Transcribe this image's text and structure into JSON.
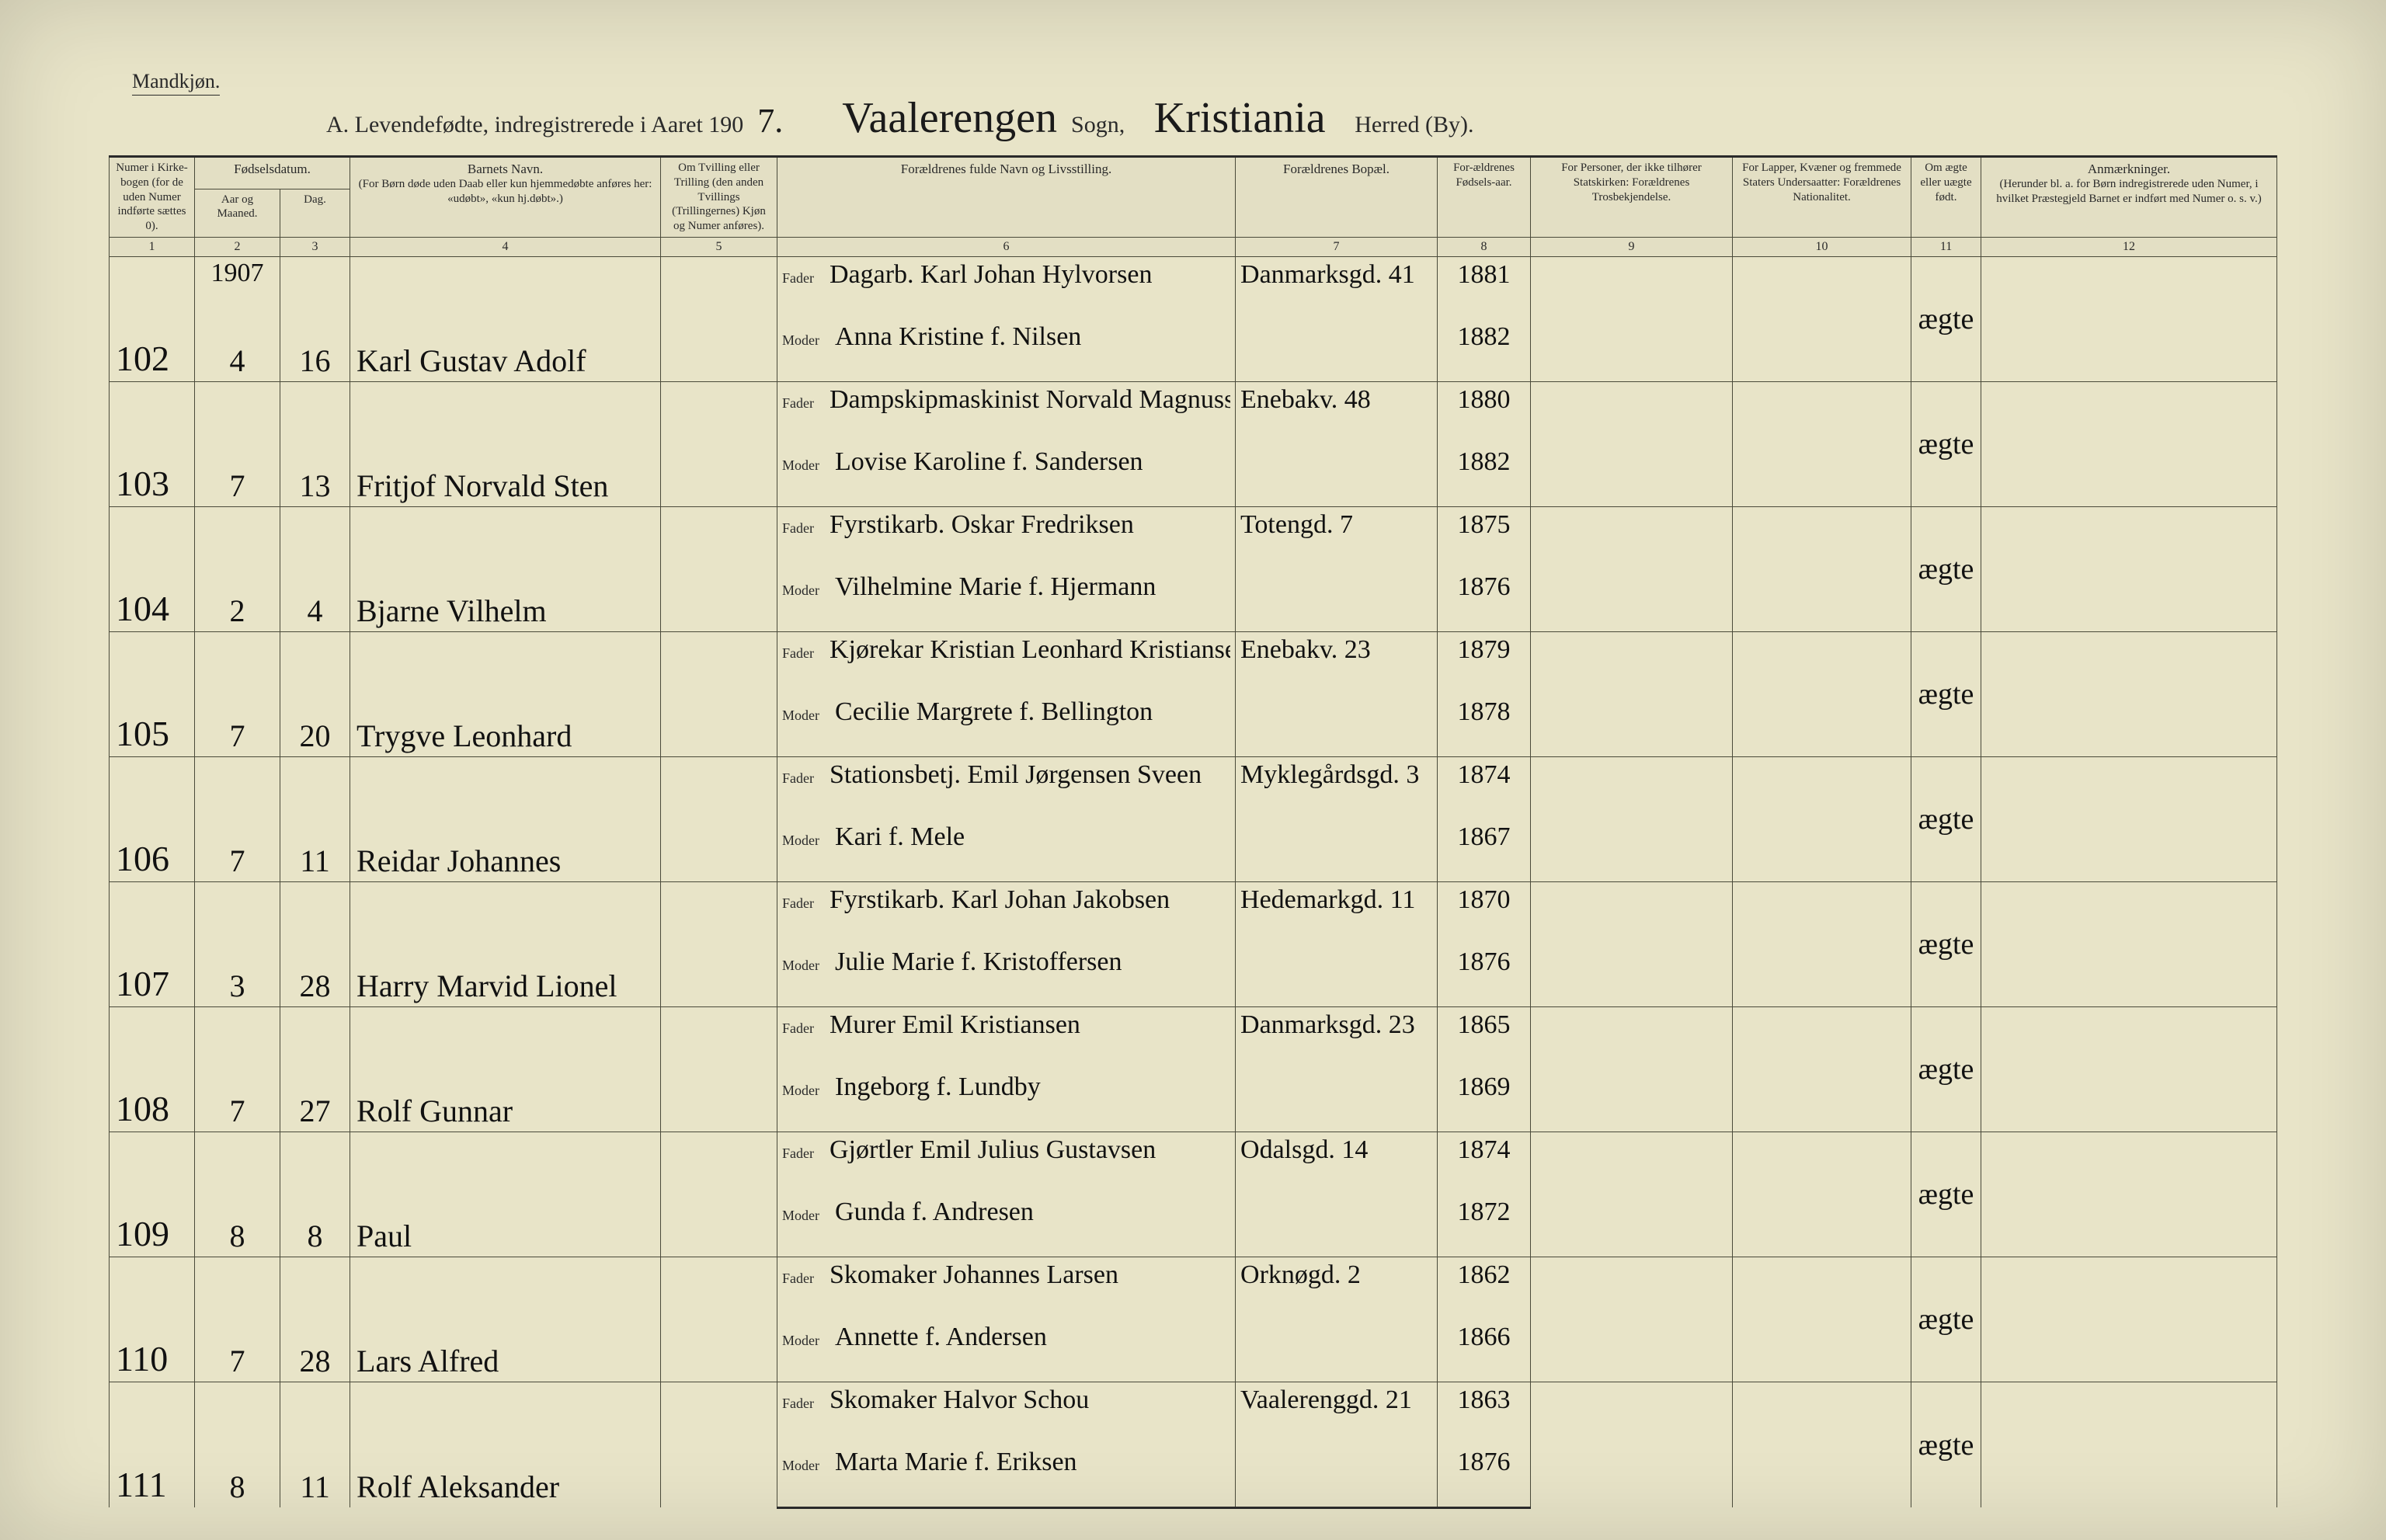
{
  "page": {
    "gender_label": "Mandkjøn.",
    "title_prefix": "A.  Levendefødte, indregistrerede i Aaret 190",
    "year_suffix_hand": "7.",
    "sogn_label": "Sogn,",
    "sogn_value": "Vaalerengen",
    "herred_label": "Herred (By).",
    "herred_value": "Kristiania"
  },
  "columns": {
    "c1": "Numer i Kirke-bogen (for de uden Numer indførte sættes 0).",
    "c2_group": "Fødselsdatum.",
    "c2a": "Aar og Maaned.",
    "c2b": "Dag.",
    "c4a": "Barnets Navn.",
    "c4b": "(For Børn døde uden Daab eller kun hjemmedøbte anføres her: «udøbt», «kun hj.døbt».)",
    "c5": "Om Tvilling eller Trilling (den anden Tvillings (Trillingernes) Kjøn og Numer anføres).",
    "c6": "Forældrenes fulde Navn og Livsstilling.",
    "c7": "Forældrenes Bopæl.",
    "c8": "For-ældrenes Fødsels-aar.",
    "c9": "For Personer, der ikke tilhører Statskirken: Forældrenes Trosbekjendelse.",
    "c10": "For Lapper, Kvæner og fremmede Staters Undersaatter: Forældrenes Nationalitet.",
    "c11": "Om ægte eller uægte født.",
    "c12a": "Anmærkninger.",
    "c12b": "(Herunder bl. a. for Børn indregistrerede uden Numer, i hvilket Præstegjeld Barnet er indført med Numer o. s. v.)",
    "nums": [
      "1",
      "2",
      "3",
      "4",
      "5",
      "6",
      "7",
      "8",
      "9",
      "10",
      "11",
      "12"
    ]
  },
  "labels": {
    "fader": "Fader",
    "moder": "Moder"
  },
  "year_header_hand": "1907",
  "rows": [
    {
      "num": "102",
      "month": "4",
      "day": "16",
      "child": "Karl Gustav Adolf",
      "fader": "Dagarb. Karl Johan Hylvorsen",
      "moder": "Anna Kristine f. Nilsen",
      "bopel": "Danmarksgd. 41",
      "faar": "1881",
      "maar": "1882",
      "egte": "ægte"
    },
    {
      "num": "103",
      "month": "7",
      "day": "13",
      "child": "Fritjof Norvald Sten",
      "fader": "Dampskipmaskinist Norvald Magnussen",
      "moder": "Lovise Karoline f. Sandersen",
      "bopel": "Enebakv. 48",
      "faar": "1880",
      "maar": "1882",
      "egte": "ægte"
    },
    {
      "num": "104",
      "month": "2",
      "day": "4",
      "child": "Bjarne Vilhelm",
      "fader": "Fyrstikarb. Oskar Fredriksen",
      "moder": "Vilhelmine Marie f. Hjermann",
      "bopel": "Totengd. 7",
      "faar": "1875",
      "maar": "1876",
      "egte": "ægte"
    },
    {
      "num": "105",
      "month": "7",
      "day": "20",
      "child": "Trygve Leonhard",
      "fader": "Kjørekar Kristian Leonhard Kristiansen",
      "moder": "Cecilie Margrete f. Bellington",
      "bopel": "Enebakv. 23",
      "faar": "1879",
      "maar": "1878",
      "egte": "ægte"
    },
    {
      "num": "106",
      "month": "7",
      "day": "11",
      "child": "Reidar Johannes",
      "fader": "Stationsbetj. Emil Jørgensen Sveen",
      "moder": "Kari f. Mele",
      "bopel": "Myklegårdsgd. 3",
      "faar": "1874",
      "maar": "1867",
      "egte": "ægte"
    },
    {
      "num": "107",
      "month": "3",
      "day": "28",
      "child": "Harry Marvid Lionel",
      "fader": "Fyrstikarb. Karl Johan Jakobsen",
      "moder": "Julie Marie f. Kristoffersen",
      "bopel": "Hedemarkgd. 11",
      "faar": "1870",
      "maar": "1876",
      "egte": "ægte"
    },
    {
      "num": "108",
      "month": "7",
      "day": "27",
      "child": "Rolf Gunnar",
      "fader": "Murer Emil Kristiansen",
      "moder": "Ingeborg f. Lundby",
      "bopel": "Danmarksgd. 23",
      "faar": "1865",
      "maar": "1869",
      "egte": "ægte"
    },
    {
      "num": "109",
      "month": "8",
      "day": "8",
      "child": "Paul",
      "fader": "Gjørtler Emil Julius Gustavsen",
      "moder": "Gunda f. Andresen",
      "bopel": "Odalsgd. 14",
      "faar": "1874",
      "maar": "1872",
      "egte": "ægte"
    },
    {
      "num": "110",
      "month": "7",
      "day": "28",
      "child": "Lars Alfred",
      "fader": "Skomaker Johannes Larsen",
      "moder": "Annette f. Andersen",
      "bopel": "Orknøgd. 2",
      "faar": "1862",
      "maar": "1866",
      "egte": "ægte"
    },
    {
      "num": "111",
      "month": "8",
      "day": "11",
      "child": "Rolf Aleksander",
      "fader": "Skomaker Halvor Schou",
      "moder": "Marta Marie f. Eriksen",
      "bopel": "Vaalerenggd. 21",
      "faar": "1863",
      "maar": "1876",
      "egte": "ægte"
    }
  ],
  "style": {
    "page_bg": "#e8e4c8",
    "ink": "#111111",
    "rule": "#4a4a3a",
    "print": "#2a2a2a",
    "hand_font": "Brush Script MT",
    "print_font": "Georgia",
    "hand_size_pt": 30,
    "print_size_pt": 13
  }
}
